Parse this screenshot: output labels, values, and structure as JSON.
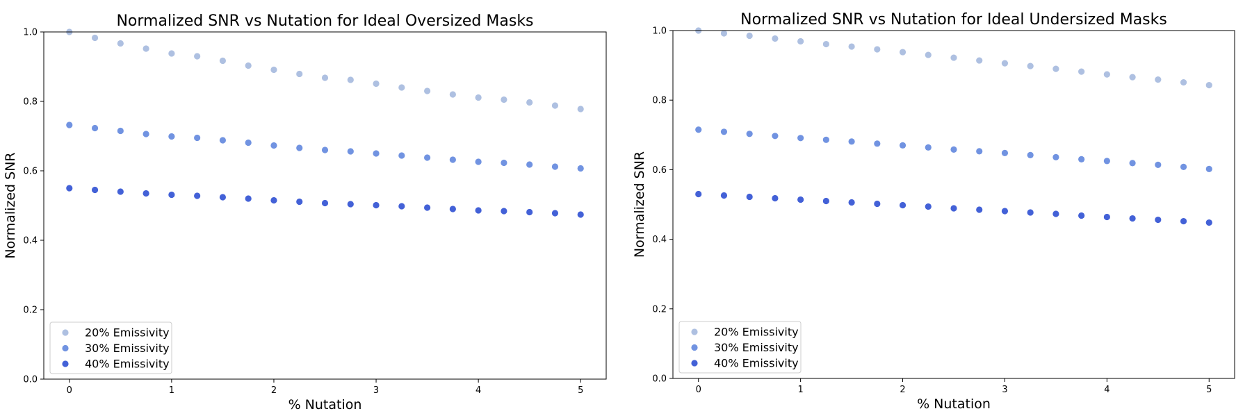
{
  "chart_data": [
    {
      "type": "scatter",
      "title": "Normalized SNR vs Nutation for Ideal Oversized Masks",
      "xlabel": "% Nutation",
      "ylabel": "Normalized SNR",
      "xlim": [
        -0.25,
        5.25
      ],
      "ylim": [
        0.0,
        1.0
      ],
      "xticks": [
        0,
        1,
        2,
        3,
        4,
        5
      ],
      "xtick_labels": [
        "0",
        "1",
        "2",
        "3",
        "4",
        "5"
      ],
      "yticks": [
        0.0,
        0.2,
        0.4,
        0.6,
        0.8,
        1.0
      ],
      "ytick_labels": [
        "0.0",
        "0.2",
        "0.4",
        "0.6",
        "0.8",
        "1.0"
      ],
      "legend_position": "lower-left",
      "x": [
        0,
        0.25,
        0.5,
        0.75,
        1.0,
        1.25,
        1.5,
        1.75,
        2.0,
        2.25,
        2.5,
        2.75,
        3.0,
        3.25,
        3.5,
        3.75,
        4.0,
        4.25,
        4.5,
        4.75,
        5.0
      ],
      "series": [
        {
          "name": "20% Emissivity",
          "color": "#aec0e1",
          "values": [
            1.0,
            0.983,
            0.967,
            0.952,
            0.938,
            0.93,
            0.917,
            0.903,
            0.891,
            0.879,
            0.868,
            0.862,
            0.851,
            0.84,
            0.83,
            0.82,
            0.811,
            0.805,
            0.797,
            0.788,
            0.778
          ]
        },
        {
          "name": "30% Emissivity",
          "color": "#7193e1",
          "values": [
            0.732,
            0.723,
            0.715,
            0.706,
            0.699,
            0.695,
            0.688,
            0.681,
            0.673,
            0.666,
            0.66,
            0.656,
            0.65,
            0.644,
            0.638,
            0.632,
            0.626,
            0.623,
            0.618,
            0.612,
            0.607
          ]
        },
        {
          "name": "40% Emissivity",
          "color": "#4361d7",
          "values": [
            0.55,
            0.545,
            0.54,
            0.535,
            0.531,
            0.528,
            0.524,
            0.52,
            0.515,
            0.511,
            0.507,
            0.504,
            0.501,
            0.498,
            0.494,
            0.49,
            0.486,
            0.484,
            0.481,
            0.478,
            0.474
          ]
        }
      ]
    },
    {
      "type": "scatter",
      "title": "Normalized SNR vs Nutation for Ideal Undersized Masks",
      "xlabel": "% Nutation",
      "ylabel": "Normalized SNR",
      "xlim": [
        -0.25,
        5.25
      ],
      "ylim": [
        0.0,
        1.0
      ],
      "xticks": [
        0,
        1,
        2,
        3,
        4,
        5
      ],
      "xtick_labels": [
        "0",
        "1",
        "2",
        "3",
        "4",
        "5"
      ],
      "yticks": [
        0.0,
        0.2,
        0.4,
        0.6,
        0.8,
        1.0
      ],
      "ytick_labels": [
        "0.0",
        "0.2",
        "0.4",
        "0.6",
        "0.8",
        "1.0"
      ],
      "legend_position": "lower-left",
      "x": [
        0,
        0.25,
        0.5,
        0.75,
        1.0,
        1.25,
        1.5,
        1.75,
        2.0,
        2.25,
        2.5,
        2.75,
        3.0,
        3.25,
        3.5,
        3.75,
        4.0,
        4.25,
        4.5,
        4.75,
        5.0
      ],
      "series": [
        {
          "name": "20% Emissivity",
          "color": "#aec0e1",
          "values": [
            1.0,
            0.992,
            0.985,
            0.977,
            0.969,
            0.961,
            0.954,
            0.946,
            0.938,
            0.93,
            0.922,
            0.914,
            0.906,
            0.898,
            0.89,
            0.882,
            0.874,
            0.866,
            0.859,
            0.851,
            0.843
          ]
        },
        {
          "name": "30% Emissivity",
          "color": "#7193e1",
          "values": [
            0.715,
            0.709,
            0.703,
            0.697,
            0.691,
            0.686,
            0.681,
            0.675,
            0.67,
            0.664,
            0.658,
            0.653,
            0.648,
            0.642,
            0.636,
            0.63,
            0.625,
            0.619,
            0.614,
            0.608,
            0.602
          ]
        },
        {
          "name": "40% Emissivity",
          "color": "#4361d7",
          "values": [
            0.53,
            0.526,
            0.522,
            0.518,
            0.514,
            0.51,
            0.506,
            0.502,
            0.498,
            0.494,
            0.489,
            0.485,
            0.481,
            0.477,
            0.473,
            0.468,
            0.464,
            0.46,
            0.456,
            0.452,
            0.448
          ]
        }
      ]
    }
  ]
}
